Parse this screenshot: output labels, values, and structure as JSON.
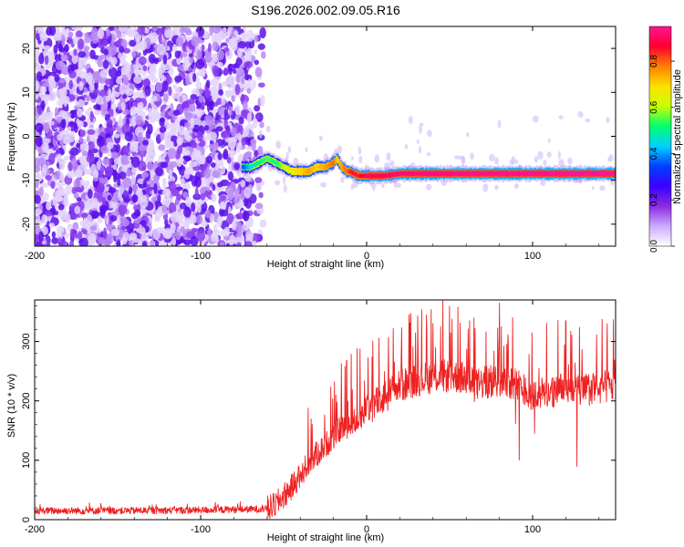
{
  "title": "S196.2026.002.09.05.R16",
  "chart_data": [
    {
      "type": "heatmap",
      "xlabel": "Height of straight line (km)",
      "ylabel": "Frequency (Hz)",
      "xlim": [
        -200,
        150
      ],
      "ylim": [
        -25,
        25
      ],
      "xticks": [
        -200,
        -100,
        0,
        100
      ],
      "xtick_labels": [
        "-200",
        "-100",
        "0",
        "100"
      ],
      "yticks": [
        20,
        10,
        0,
        -10,
        -20
      ],
      "ytick_labels": [
        "20",
        "10",
        "0",
        "-10",
        "-20"
      ],
      "colorbar": {
        "label": "Normalized spectral amplitude",
        "range": [
          0,
          0.95
        ],
        "ticks": [
          0.0,
          0.2,
          0.4,
          0.6,
          0.8
        ],
        "tick_labels": [
          "0.0",
          "0.2",
          "0.4",
          "0.6",
          "0.8"
        ],
        "colormap": [
          "#ffffff",
          "#ccaaff",
          "#8a2be2",
          "#3a00ff",
          "#0040ff",
          "#00d0ff",
          "#00ff70",
          "#c8ff00",
          "#ffe000",
          "#ff8000",
          "#ff0030",
          "#ff1493"
        ]
      },
      "noise_region": {
        "x_range": [
          -200,
          -70
        ],
        "amplitude_range": [
          0.0,
          0.1
        ]
      },
      "ridge": {
        "description": "dominant frequency track",
        "x": [
          -75,
          -70,
          -65,
          -60,
          -55,
          -50,
          -45,
          -40,
          -35,
          -30,
          -25,
          -20,
          -18,
          -15,
          -12,
          -10,
          -5,
          0,
          10,
          20,
          30,
          50,
          100,
          150
        ],
        "frequency": [
          -7,
          -7,
          -6,
          -5,
          -6,
          -7,
          -8,
          -8,
          -8,
          -7,
          -7,
          -6,
          -5,
          -7,
          -8,
          -8,
          -9,
          -9,
          -9,
          -8.5,
          -8.5,
          -8.5,
          -8.5,
          -8.5
        ],
        "amplitude": [
          0.35,
          0.45,
          0.5,
          0.55,
          0.5,
          0.6,
          0.65,
          0.7,
          0.75,
          0.7,
          0.75,
          0.8,
          0.7,
          0.75,
          0.8,
          0.85,
          0.85,
          0.9,
          0.9,
          0.92,
          0.92,
          0.93,
          0.94,
          0.95
        ]
      }
    },
    {
      "type": "line",
      "xlabel": "Height of straight line (km)",
      "ylabel": "SNR (10 * v/v)",
      "xlim": [
        -200,
        150
      ],
      "ylim": [
        0,
        370
      ],
      "xticks": [
        -200,
        -100,
        0,
        100
      ],
      "xtick_labels": [
        "-200",
        "-100",
        "0",
        "100"
      ],
      "yticks": [
        0,
        100,
        200,
        300
      ],
      "ytick_labels": [
        "0",
        "100",
        "200",
        "300"
      ],
      "series": [
        {
          "color": "#ee2222",
          "x": [
            -200,
            -150,
            -100,
            -60,
            -55,
            -50,
            -45,
            -40,
            -35,
            -30,
            -25,
            -20,
            -15,
            -10,
            -5,
            0,
            10,
            20,
            30,
            40,
            50,
            60,
            65,
            70,
            80,
            90,
            100,
            110,
            120,
            130,
            140,
            150
          ],
          "y": [
            15,
            15,
            16,
            18,
            25,
            40,
            55,
            75,
            95,
            110,
            125,
            140,
            155,
            160,
            170,
            185,
            205,
            225,
            235,
            240,
            242,
            238,
            225,
            230,
            235,
            230,
            210,
            215,
            220,
            218,
            222,
            225
          ],
          "spikes": [
            {
              "x": -12,
              "y": 268
            },
            {
              "x": -13,
              "y": 258
            },
            {
              "x": 40,
              "y": 330
            },
            {
              "x": 46,
              "y": 370
            },
            {
              "x": 55,
              "y": 358
            },
            {
              "x": 80,
              "y": 365
            },
            {
              "x": 62,
              "y": 335
            },
            {
              "x": 88,
              "y": 340
            },
            {
              "x": 120,
              "y": 335
            },
            {
              "x": 145,
              "y": 330
            }
          ]
        }
      ]
    }
  ]
}
